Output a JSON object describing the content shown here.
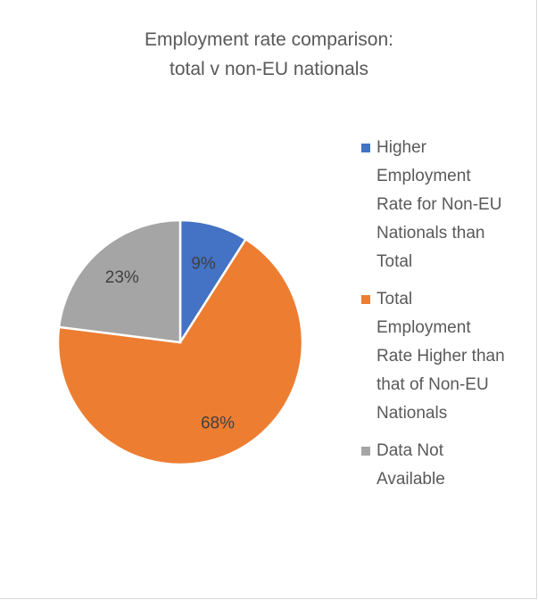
{
  "chart_data": {
    "type": "pie",
    "title_lines": [
      "Employment rate comparison:",
      "total v non-EU nationals"
    ],
    "slices": [
      {
        "label": "Higher Employment Rate for Non-EU Nationals than Total",
        "value": 9,
        "display": "9%",
        "color": "#4472c4"
      },
      {
        "label": "Total Employment Rate Higher than that of Non-EU Nationals",
        "value": 68,
        "display": "68%",
        "color": "#ed7d31"
      },
      {
        "label": "Data Not Available",
        "value": 23,
        "display": "23%",
        "color": "#a5a5a5"
      }
    ],
    "legend": {
      "position": "right",
      "lines": [
        [
          "Higher",
          "Employment",
          "Rate for Non-EU",
          "Nationals than",
          "Total"
        ],
        [
          "Total",
          "Employment",
          "Rate Higher than",
          "that of Non-EU",
          "Nationals"
        ],
        [
          "Data Not",
          "Available"
        ]
      ]
    }
  }
}
